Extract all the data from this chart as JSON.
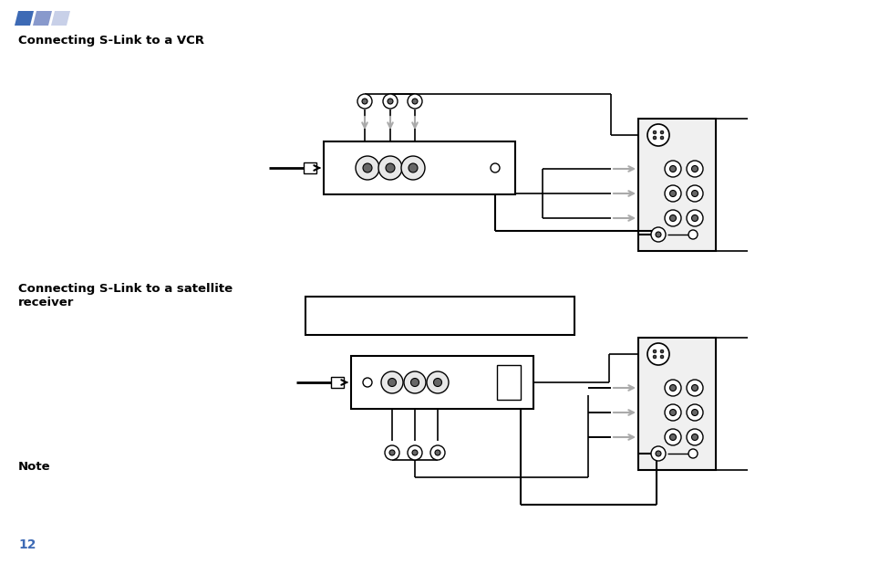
{
  "bg_color": "#ffffff",
  "title_vcr": "Connecting S-Link to a VCR",
  "title_sat": "Connecting S-Link to a satellite\nreceiver",
  "note_label": "Note",
  "page_num": "12",
  "icon_colors": [
    "#3d6ab5",
    "#8899cc",
    "#c8d0e8"
  ],
  "blue_text_color": "#3d6ab5",
  "black": "#000000",
  "gray": "#888888",
  "dark_gray": "#444444",
  "panel_bg": "#f0f0f0"
}
